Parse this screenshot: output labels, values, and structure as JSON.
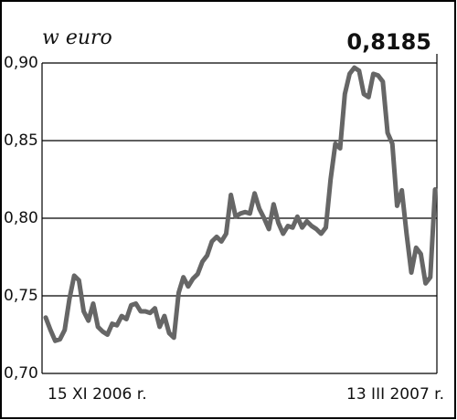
{
  "chart_data": {
    "type": "line",
    "title": "w euro",
    "categories": [
      "15 XI 2006 r.",
      null,
      null,
      null,
      null,
      null,
      null,
      null,
      null,
      null,
      null,
      null,
      null,
      null,
      null,
      null,
      null,
      null,
      null,
      null,
      null,
      null,
      null,
      null,
      null,
      null,
      null,
      null,
      null,
      null,
      null,
      null,
      null,
      null,
      null,
      null,
      null,
      null,
      null,
      null,
      null,
      null,
      null,
      null,
      null,
      null,
      null,
      null,
      null,
      null,
      null,
      null,
      null,
      null,
      null,
      null,
      null,
      null,
      null,
      null,
      null,
      null,
      null,
      null,
      null,
      null,
      null,
      null,
      null,
      null,
      null,
      null,
      null,
      null,
      null,
      null,
      null,
      null,
      null,
      null,
      null,
      null,
      "13 III 2007 r."
    ],
    "series": [
      {
        "name": null,
        "color": "#666666",
        "values": [
          0.736,
          0.728,
          0.721,
          0.722,
          0.728,
          0.748,
          0.763,
          0.76,
          0.74,
          0.734,
          0.745,
          0.73,
          0.727,
          0.725,
          0.732,
          0.731,
          0.737,
          0.735,
          0.744,
          0.745,
          0.74,
          0.74,
          0.739,
          0.742,
          0.73,
          0.737,
          0.726,
          0.723,
          0.752,
          0.762,
          0.756,
          0.761,
          0.764,
          0.772,
          0.776,
          0.785,
          0.788,
          0.785,
          0.79,
          0.815,
          0.801,
          0.803,
          0.804,
          0.803,
          0.816,
          0.806,
          0.8,
          0.793,
          0.809,
          0.797,
          0.79,
          0.795,
          0.794,
          0.801,
          0.794,
          0.798,
          0.795,
          0.793,
          0.79,
          0.794,
          0.825,
          0.848,
          0.845,
          0.88,
          0.893,
          0.897,
          0.895,
          0.88,
          0.878,
          0.893,
          0.892,
          0.888,
          0.855,
          0.848,
          0.808,
          0.818,
          0.79,
          0.765,
          0.781,
          0.777,
          0.758,
          0.762,
          0.8185
        ],
        "value_labels": [
          null,
          null,
          null,
          null,
          null,
          null,
          null,
          null,
          null,
          null,
          null,
          null,
          null,
          null,
          null,
          null,
          null,
          null,
          null,
          null,
          null,
          null,
          null,
          null,
          null,
          null,
          null,
          null,
          null,
          null,
          null,
          null,
          null,
          null,
          null,
          null,
          null,
          null,
          null,
          null,
          null,
          null,
          null,
          null,
          null,
          null,
          null,
          null,
          null,
          null,
          null,
          null,
          null,
          null,
          null,
          null,
          null,
          null,
          null,
          null,
          null,
          null,
          null,
          null,
          null,
          null,
          null,
          null,
          null,
          null,
          null,
          null,
          null,
          null,
          null,
          null,
          null,
          null,
          null,
          null,
          null,
          null,
          "0,8185"
        ]
      }
    ],
    "ylim": [
      0.7,
      0.9
    ],
    "yticks": [
      {
        "value": 0.7,
        "label": "0,70"
      },
      {
        "value": 0.75,
        "label": "0,75"
      },
      {
        "value": 0.8,
        "label": "0,80"
      },
      {
        "value": 0.85,
        "label": "0,85"
      },
      {
        "value": 0.9,
        "label": "0,90"
      }
    ],
    "grid": true
  }
}
